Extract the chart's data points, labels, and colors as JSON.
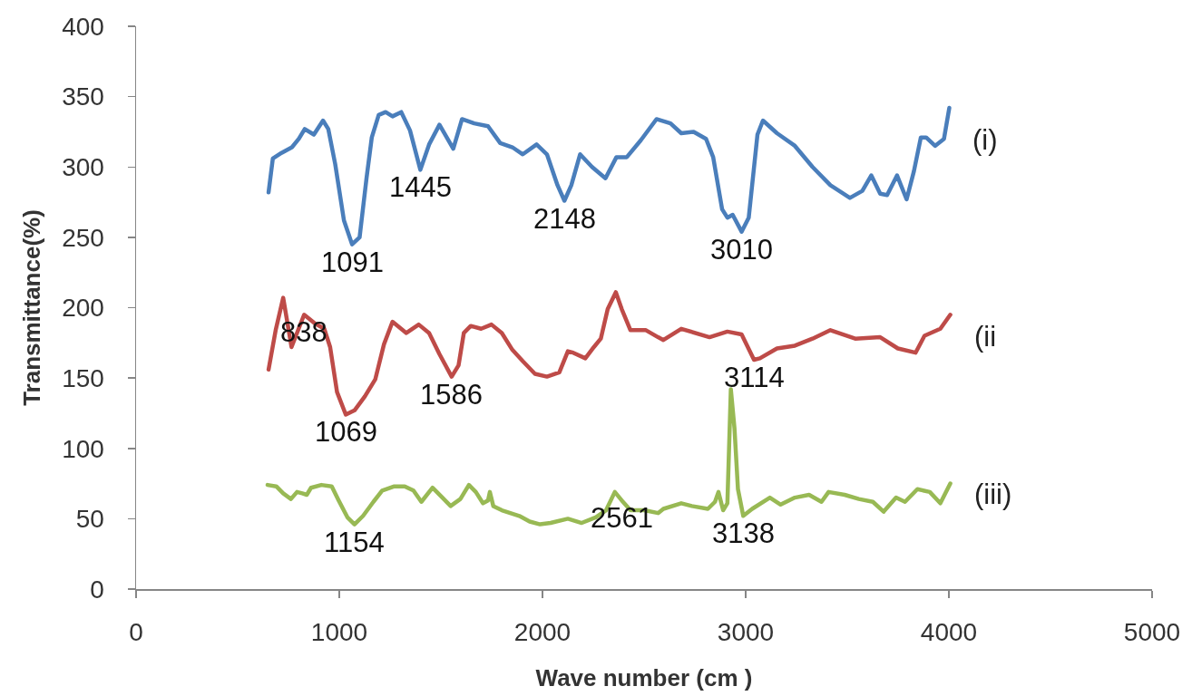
{
  "chart_data": {
    "type": "line",
    "xlabel": "Wave number (cm )",
    "ylabel": "Transmittance(%)",
    "xlim": [
      0,
      5000
    ],
    "xticks": [
      0,
      1000,
      2000,
      3000,
      4000,
      5000
    ],
    "ylim": [
      0,
      400
    ],
    "yticks": [
      0,
      50,
      100,
      150,
      200,
      250,
      300,
      350,
      400
    ],
    "grid": false,
    "legend": false,
    "marker": "none",
    "line_style": "solid",
    "series": [
      {
        "name": "(i)",
        "color": "#4a7ebb",
        "x": [
          652,
          673,
          716,
          767,
          801,
          830,
          875,
          920,
          946,
          980,
          1023,
          1063,
          1100,
          1134,
          1160,
          1194,
          1228,
          1262,
          1305,
          1348,
          1399,
          1442,
          1493,
          1561,
          1604,
          1664,
          1732,
          1792,
          1852,
          1903,
          1971,
          2022,
          2074,
          2108,
          2142,
          2185,
          2244,
          2310,
          2364,
          2415,
          2484,
          2561,
          2630,
          2683,
          2744,
          2805,
          2840,
          2884,
          2910,
          2936,
          2980,
          3015,
          3058,
          3085,
          3154,
          3242,
          3329,
          3417,
          3513,
          3574,
          3618,
          3662,
          3696,
          3745,
          3792,
          3828,
          3862,
          3888,
          3932,
          3976,
          4002
        ],
        "values": [
          282,
          306,
          310,
          314,
          320,
          327,
          323,
          333,
          327,
          302,
          262,
          245,
          250,
          292,
          321,
          337,
          339,
          336,
          339,
          326,
          298,
          316,
          330,
          313,
          334,
          331,
          329,
          317,
          314,
          309,
          316,
          309,
          287,
          276,
          287,
          309,
          300,
          292,
          307,
          307,
          319,
          334,
          331,
          324,
          325,
          320,
          307,
          270,
          264,
          266,
          254,
          264,
          323,
          333,
          324,
          315,
          300,
          287,
          278,
          283,
          294,
          281,
          280,
          294,
          277,
          297,
          321,
          321,
          315,
          320,
          342
        ]
      },
      {
        "name": "(ii",
        "color": "#be4b48",
        "x": [
          652,
          687,
          724,
          765,
          827,
          878,
          926,
          955,
          989,
          1032,
          1075,
          1126,
          1177,
          1220,
          1262,
          1330,
          1391,
          1442,
          1493,
          1553,
          1587,
          1613,
          1647,
          1698,
          1749,
          1800,
          1852,
          1903,
          1963,
          2022,
          2083,
          2125,
          2151,
          2211,
          2253,
          2287,
          2321,
          2361,
          2390,
          2433,
          2509,
          2569,
          2595,
          2683,
          2822,
          2910,
          2980,
          3041,
          3070,
          3154,
          3242,
          3329,
          3417,
          3539,
          3662,
          3749,
          3836,
          3880,
          3958,
          4007
        ],
        "values": [
          156,
          184,
          207,
          172,
          195,
          189,
          185,
          172,
          140,
          124,
          127,
          137,
          149,
          174,
          190,
          182,
          188,
          182,
          167,
          151,
          159,
          182,
          187,
          185,
          188,
          182,
          170,
          162,
          153,
          151,
          154,
          169,
          168,
          164,
          172,
          178,
          199,
          211,
          199,
          184,
          184,
          179,
          177,
          185,
          179,
          183,
          181,
          163,
          164,
          171,
          173,
          178,
          184,
          178,
          179,
          171,
          168,
          180,
          185,
          195
        ]
      },
      {
        "name": "(iii)",
        "color": "#98b954",
        "x": [
          647,
          690,
          724,
          762,
          792,
          818,
          840,
          861,
          912,
          963,
          997,
          1040,
          1075,
          1117,
          1168,
          1211,
          1271,
          1322,
          1365,
          1404,
          1459,
          1501,
          1548,
          1596,
          1638,
          1672,
          1707,
          1732,
          1741,
          1758,
          1800,
          1886,
          1937,
          1988,
          2040,
          2125,
          2193,
          2262,
          2313,
          2356,
          2390,
          2433,
          2501,
          2569,
          2595,
          2683,
          2735,
          2814,
          2849,
          2866,
          2889,
          2910,
          2927,
          2945,
          2962,
          2988,
          3032,
          3119,
          3172,
          3242,
          3312,
          3373,
          3408,
          3487,
          3557,
          3626,
          3679,
          3740,
          3784,
          3845,
          3906,
          3958,
          4007
        ],
        "values": [
          74,
          73,
          68,
          64,
          69,
          68,
          67,
          72,
          74,
          73,
          63,
          51,
          46,
          52,
          62,
          70,
          73,
          73,
          70,
          62,
          72,
          66,
          59,
          64,
          74,
          69,
          61,
          63,
          69,
          59,
          56,
          52,
          48,
          46,
          47,
          50,
          47,
          51,
          56,
          69,
          63,
          56,
          56,
          54,
          57,
          61,
          59,
          57,
          62,
          69,
          56,
          61,
          142,
          114,
          71,
          52,
          57,
          65,
          60,
          65,
          67,
          62,
          69,
          67,
          64,
          62,
          55,
          65,
          62,
          71,
          69,
          61,
          75
        ]
      }
    ],
    "annotations": [
      {
        "text": "1091",
        "x": 1063,
        "y": 245
      },
      {
        "text": "1445",
        "x": 1399,
        "y": 298
      },
      {
        "text": "2148",
        "x": 2108,
        "y": 276
      },
      {
        "text": "3010",
        "x": 2980,
        "y": 254
      },
      {
        "text": "838",
        "x": 827,
        "y": 195
      },
      {
        "text": "1069",
        "x": 1032,
        "y": 124
      },
      {
        "text": "1586",
        "x": 1553,
        "y": 151
      },
      {
        "text": "3114",
        "x": 3041,
        "y": 163
      },
      {
        "text": "1154",
        "x": 1075,
        "y": 46
      },
      {
        "text": "2561",
        "x": 2390,
        "y": 63
      },
      {
        "text": "3138",
        "x": 2988,
        "y": 52
      }
    ]
  }
}
